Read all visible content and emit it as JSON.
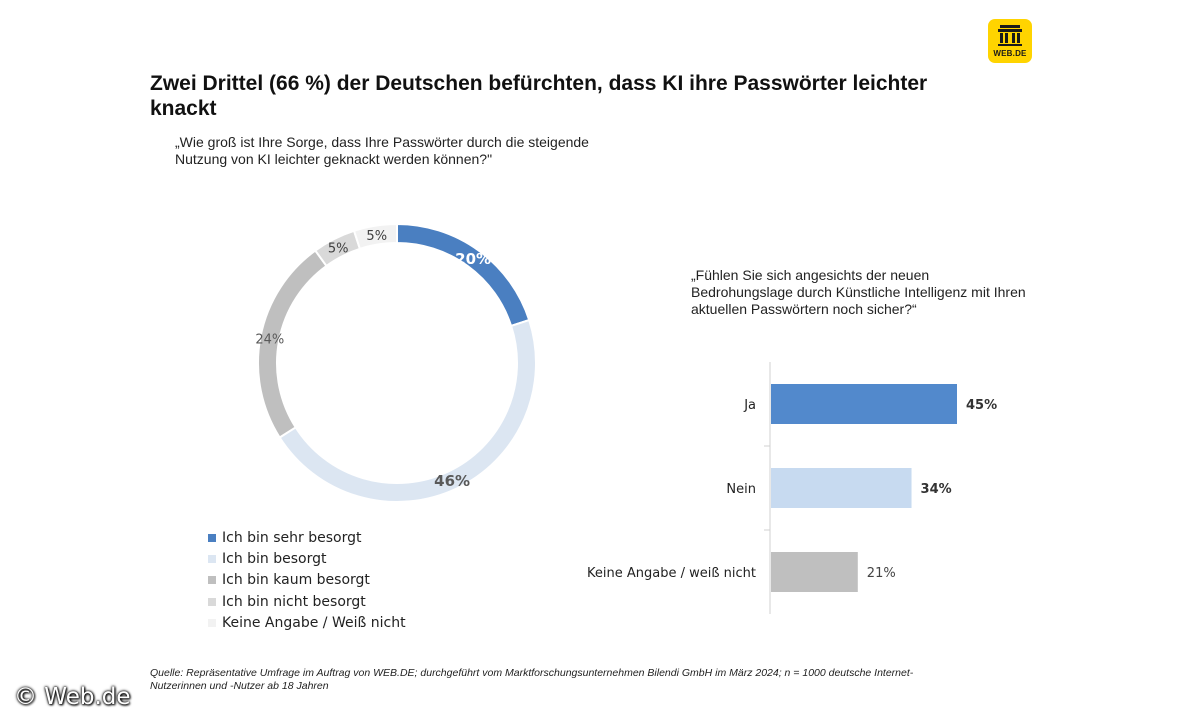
{
  "logo": {
    "text": "WEB.DE"
  },
  "title": "Zwei Drittel (66 %) der Deutschen befürchten, dass KI ihre Passwörter leichter knackt",
  "source": "Quelle: Repräsentative Umfrage im Auftrag von WEB.DE; durchgeführt vom Marktforschungsunternehmen Bilendi GmbH im März 2024; n = 1000 deutsche Internet-Nutzerinnen und -Nutzer ab 18 Jahren",
  "watermark": "© Web.de",
  "chart_data": [
    {
      "type": "pie",
      "subtype": "donut",
      "title": "„Wie groß ist Ihre Sorge, dass Ihre Passwörter durch die steigende Nutzung von KI leichter geknackt werden können?\"",
      "legend_position": "bottom",
      "categories": [
        "Ich bin sehr besorgt",
        "Ich bin besorgt",
        "Ich bin kaum besorgt",
        "Ich bin nicht besorgt",
        "Keine Angabe / Weiß nicht"
      ],
      "values": [
        20,
        46,
        24,
        5,
        5
      ],
      "labels": [
        "20%",
        "46%",
        "24%",
        "5%",
        "5%"
      ],
      "colors": [
        "#4a7fc1",
        "#dce6f2",
        "#bfbfbf",
        "#d9d9d9",
        "#f2f2f2"
      ],
      "label_colors": [
        "#ffffff",
        "#595959",
        "#595959",
        "#404040",
        "#404040"
      ]
    },
    {
      "type": "bar",
      "orientation": "horizontal",
      "title": "„Fühlen Sie sich angesichts der neuen Bedrohungslage durch Künstliche Intelligenz mit Ihren aktuellen Passwörtern noch sicher?“",
      "categories": [
        "Ja",
        "Nein",
        "Keine Angabe / weiß nicht"
      ],
      "values": [
        45,
        34,
        21
      ],
      "labels": [
        "45%",
        "34%",
        "21%"
      ],
      "colors": [
        "#5289cc",
        "#c7daf0",
        "#bfbfbf"
      ],
      "xlim": [
        0,
        50
      ],
      "grid": false
    }
  ]
}
